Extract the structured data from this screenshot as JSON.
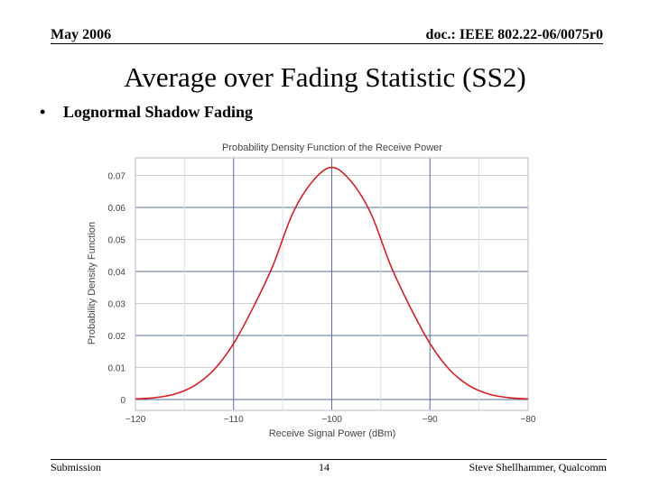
{
  "header": {
    "date": "May 2006",
    "doc_id": "doc.: IEEE 802.22-06/0075r0"
  },
  "slide": {
    "title": "Average over Fading Statistic (SS2)",
    "bullet": "•",
    "bullet_text": "Lognormal Shadow Fading"
  },
  "footer": {
    "left": "Submission",
    "page": "14",
    "author": "Steve Shellhammer, Qualcomm"
  },
  "chart_data": {
    "type": "line",
    "title": "Probability Density Function of the Receive Power",
    "xlabel": "Receive Signal Power (dBm)",
    "ylabel": "Probability Density Function",
    "xlim": [
      -120,
      -80
    ],
    "ylim": [
      0,
      0.07
    ],
    "x_ticks": [
      -120,
      -110,
      -100,
      -90,
      -80
    ],
    "x_tick_labels": [
      "−120",
      "−110",
      "−100",
      "−90",
      "−80"
    ],
    "y_ticks": [
      0,
      0.01,
      0.02,
      0.03,
      0.04,
      0.05,
      0.06,
      0.07
    ],
    "y_tick_labels": [
      "0",
      "0.01",
      "0.02",
      "0.03",
      "0.04",
      "0.05",
      "0.06",
      "0.07"
    ],
    "grid": true,
    "series": [
      {
        "color": "#d42020",
        "x": [
          -120,
          -118,
          -116,
          -114,
          -112,
          -110,
          -108,
          -106,
          -104,
          -102,
          -100,
          -98,
          -96,
          -94,
          -92,
          -90,
          -88,
          -86,
          -84,
          -82,
          -80
        ],
        "y": [
          0.0002,
          0.0006,
          0.0017,
          0.0043,
          0.0093,
          0.0175,
          0.0288,
          0.0418,
          0.058,
          0.068,
          0.0725,
          0.068,
          0.058,
          0.0418,
          0.0288,
          0.0175,
          0.0093,
          0.0043,
          0.0017,
          0.0006,
          0.0002
        ]
      }
    ]
  }
}
